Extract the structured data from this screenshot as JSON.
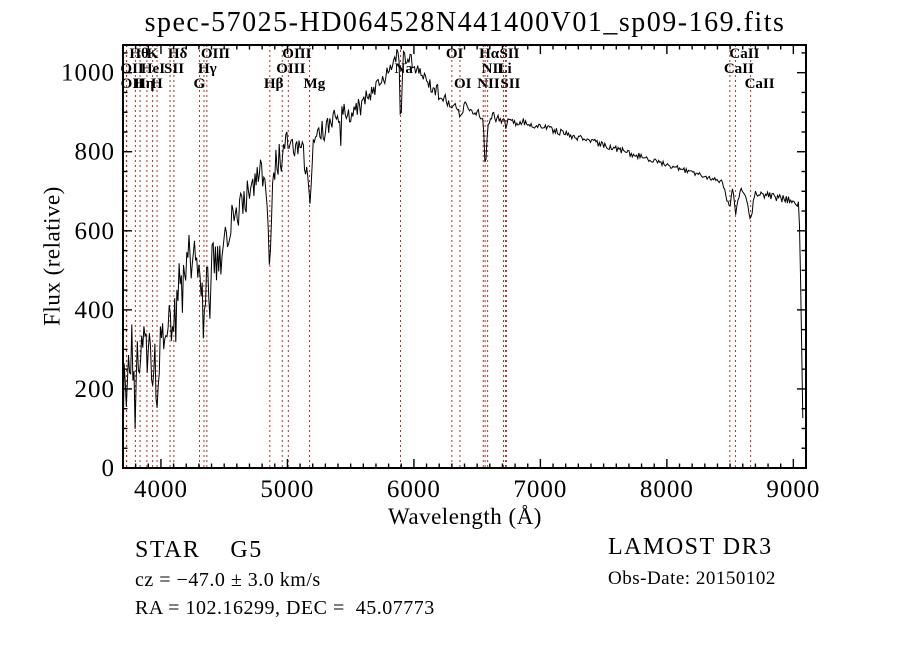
{
  "title": "spec-57025-HD064528N441400V01_sp09-169.fits",
  "footer": {
    "left": {
      "class_type": "STAR    G5",
      "cz": "cz = −47.0 ± 3.0 km/s",
      "coords": "RA = 102.16299, DEC =  45.07773"
    },
    "right": {
      "survey": "LAMOST DR3",
      "obs_date": "Obs-Date: 20150102"
    }
  },
  "chart_data": {
    "type": "line",
    "title": "spec-57025-HD064528N441400V01_sp09-169.fits",
    "xlabel": "Wavelength (Å)",
    "ylabel": "Flux (relative)",
    "xlim": [
      3700,
      9100
    ],
    "ylim": [
      0,
      1070
    ],
    "x_ticks": [
      4000,
      5000,
      6000,
      7000,
      8000,
      9000
    ],
    "x_minor_step": 100,
    "y_ticks": [
      0,
      200,
      400,
      600,
      800,
      1000
    ],
    "y_minor_step": 50,
    "grid": false,
    "legend": "none",
    "line_color": "#000000",
    "frame_color": "#000000",
    "spectral_line_color": "#a5342c",
    "spectral_lines": [
      {
        "label": "Hθ",
        "wavelength": 3798,
        "row": 1
      },
      {
        "label": "K",
        "wavelength": 3934,
        "row": 1
      },
      {
        "label": "Hδ",
        "wavelength": 4102,
        "row": 1
      },
      {
        "label": "OIII",
        "wavelength": 4363,
        "row": 1
      },
      {
        "label": "OIII",
        "wavelength": 5007,
        "row": 1
      },
      {
        "label": "OI",
        "wavelength": 6300,
        "row": 1
      },
      {
        "label": "Hα",
        "wavelength": 6563,
        "row": 1
      },
      {
        "label": "SII",
        "wavelength": 6724,
        "row": 1
      },
      {
        "label": "CaII",
        "wavelength": 8542,
        "row": 1
      },
      {
        "label": "OII",
        "wavelength": 3727,
        "row": 2
      },
      {
        "label": "HeI",
        "wavelength": 3889,
        "row": 2
      },
      {
        "label": "SII",
        "wavelength": 4072,
        "row": 2
      },
      {
        "label": "Hγ",
        "wavelength": 4340,
        "row": 2
      },
      {
        "label": "OIII",
        "wavelength": 4959,
        "row": 2
      },
      {
        "label": "Na",
        "wavelength": 5894,
        "row": 2
      },
      {
        "label": "NII",
        "wavelength": 6583,
        "row": 2
      },
      {
        "label": "Li",
        "wavelength": 6708,
        "row": 2
      },
      {
        "label": "CaII",
        "wavelength": 8498,
        "row": 2
      },
      {
        "label": "OII",
        "wavelength": 3729,
        "row": 3
      },
      {
        "label": "Hη",
        "wavelength": 3835,
        "row": 3
      },
      {
        "label": "H",
        "wavelength": 3969,
        "row": 3
      },
      {
        "label": "G",
        "wavelength": 4305,
        "row": 3
      },
      {
        "label": "Hβ",
        "wavelength": 4861,
        "row": 3
      },
      {
        "label": "Mg",
        "wavelength": 5175,
        "row": 3
      },
      {
        "label": "OI",
        "wavelength": 6364,
        "row": 3
      },
      {
        "label": "NII",
        "wavelength": 6548,
        "row": 3
      },
      {
        "label": "SII",
        "wavelength": 6731,
        "row": 3
      },
      {
        "label": "CaII",
        "wavelength": 8662,
        "row": 3
      }
    ],
    "envelope": [
      [
        3700,
        60
      ],
      [
        3706,
        240
      ],
      [
        3715,
        200
      ],
      [
        3727,
        170
      ],
      [
        3740,
        300
      ],
      [
        3755,
        235
      ],
      [
        3770,
        310
      ],
      [
        3783,
        250
      ],
      [
        3798,
        230
      ],
      [
        3815,
        330
      ],
      [
        3835,
        215
      ],
      [
        3852,
        310
      ],
      [
        3870,
        340
      ],
      [
        3889,
        265
      ],
      [
        3905,
        335
      ],
      [
        3920,
        290
      ],
      [
        3934,
        170
      ],
      [
        3950,
        265
      ],
      [
        3969,
        200
      ],
      [
        3990,
        290
      ],
      [
        4010,
        340
      ],
      [
        4040,
        380
      ],
      [
        4070,
        350
      ],
      [
        4102,
        390
      ],
      [
        4130,
        455
      ],
      [
        4160,
        490
      ],
      [
        4200,
        515
      ],
      [
        4230,
        545
      ],
      [
        4255,
        515
      ],
      [
        4280,
        545
      ],
      [
        4305,
        435
      ],
      [
        4322,
        505
      ],
      [
        4340,
        335
      ],
      [
        4360,
        545
      ],
      [
        4385,
        400
      ],
      [
        4410,
        545
      ],
      [
        4440,
        500
      ],
      [
        4470,
        560
      ],
      [
        4500,
        555
      ],
      [
        4540,
        610
      ],
      [
        4580,
        640
      ],
      [
        4620,
        660
      ],
      [
        4660,
        680
      ],
      [
        4700,
        700
      ],
      [
        4740,
        720
      ],
      [
        4780,
        740
      ],
      [
        4820,
        755
      ],
      [
        4861,
        480
      ],
      [
        4885,
        765
      ],
      [
        4920,
        775
      ],
      [
        4960,
        795
      ],
      [
        5000,
        810
      ],
      [
        5040,
        815
      ],
      [
        5080,
        822
      ],
      [
        5120,
        828
      ],
      [
        5175,
        665
      ],
      [
        5210,
        832
      ],
      [
        5250,
        850
      ],
      [
        5300,
        862
      ],
      [
        5350,
        872
      ],
      [
        5400,
        882
      ],
      [
        5450,
        890
      ],
      [
        5500,
        900
      ],
      [
        5550,
        915
      ],
      [
        5600,
        930
      ],
      [
        5650,
        945
      ],
      [
        5700,
        962
      ],
      [
        5750,
        982
      ],
      [
        5800,
        1008
      ],
      [
        5840,
        1032
      ],
      [
        5868,
        1050
      ],
      [
        5880,
        1065
      ],
      [
        5894,
        845
      ],
      [
        5915,
        1035
      ],
      [
        5950,
        1042
      ],
      [
        5985,
        1030
      ],
      [
        6020,
        1012
      ],
      [
        6060,
        995
      ],
      [
        6100,
        980
      ],
      [
        6150,
        962
      ],
      [
        6200,
        946
      ],
      [
        6250,
        934
      ],
      [
        6300,
        904
      ],
      [
        6330,
        924
      ],
      [
        6364,
        896
      ],
      [
        6400,
        916
      ],
      [
        6440,
        910
      ],
      [
        6480,
        904
      ],
      [
        6520,
        896
      ],
      [
        6548,
        878
      ],
      [
        6563,
        748
      ],
      [
        6583,
        868
      ],
      [
        6620,
        890
      ],
      [
        6660,
        886
      ],
      [
        6708,
        878
      ],
      [
        6731,
        868
      ],
      [
        6770,
        880
      ],
      [
        6830,
        876
      ],
      [
        6900,
        872
      ],
      [
        6970,
        866
      ],
      [
        7050,
        860
      ],
      [
        7150,
        850
      ],
      [
        7250,
        840
      ],
      [
        7350,
        832
      ],
      [
        7450,
        822
      ],
      [
        7550,
        812
      ],
      [
        7650,
        802
      ],
      [
        7750,
        792
      ],
      [
        7850,
        782
      ],
      [
        7950,
        772
      ],
      [
        8050,
        762
      ],
      [
        8150,
        752
      ],
      [
        8250,
        742
      ],
      [
        8350,
        732
      ],
      [
        8440,
        722
      ],
      [
        8498,
        652
      ],
      [
        8520,
        712
      ],
      [
        8542,
        642
      ],
      [
        8580,
        705
      ],
      [
        8620,
        700
      ],
      [
        8662,
        632
      ],
      [
        8700,
        696
      ],
      [
        8760,
        692
      ],
      [
        8830,
        687
      ],
      [
        8900,
        682
      ],
      [
        8960,
        678
      ],
      [
        9010,
        674
      ],
      [
        9045,
        665
      ],
      [
        9060,
        430
      ],
      [
        9075,
        120
      ]
    ],
    "noise_regions": [
      [
        3700,
        4450,
        58
      ],
      [
        4450,
        5000,
        45
      ],
      [
        5000,
        5600,
        32
      ],
      [
        5600,
        6200,
        20
      ],
      [
        6200,
        6900,
        12
      ],
      [
        6900,
        7800,
        8
      ],
      [
        7800,
        8600,
        6
      ],
      [
        8600,
        9100,
        9
      ]
    ],
    "seed": 20150102
  }
}
